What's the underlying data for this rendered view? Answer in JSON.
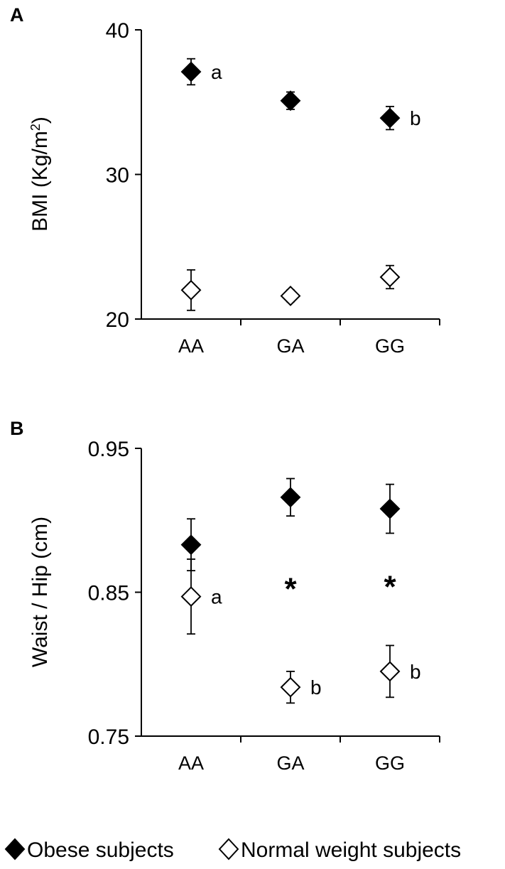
{
  "legend": {
    "obese_label": "Obese subjects",
    "normal_label": "Normal weight subjects"
  },
  "colors": {
    "obese": "#000000",
    "normal": "#ffffff",
    "stroke": "#000000"
  },
  "chart_data": [
    {
      "panel": "A",
      "type": "scatter",
      "categories": [
        "AA",
        "GA",
        "GG"
      ],
      "ylabel": "BMI (Kg/m²)",
      "ylabel_main": "BMI (Kg/m",
      "ylabel_sup": "2",
      "ylabel_end": ")",
      "ylim": [
        20,
        40
      ],
      "yticks": [
        20,
        30,
        40
      ],
      "series": [
        {
          "name": "Obese subjects",
          "values": [
            37.1,
            35.1,
            33.9
          ],
          "error": [
            0.9,
            0.6,
            0.8
          ],
          "annotations": [
            "a",
            "",
            "b"
          ]
        },
        {
          "name": "Normal weight subjects",
          "values": [
            22.0,
            21.6,
            22.9
          ],
          "error": [
            1.4,
            0.4,
            0.8
          ],
          "annotations": [
            "",
            "",
            ""
          ]
        }
      ],
      "stars": [
        "",
        "",
        ""
      ]
    },
    {
      "panel": "B",
      "type": "scatter",
      "categories": [
        "AA",
        "GA",
        "GG"
      ],
      "ylabel": "Waist / Hip (cm)",
      "ylabel_main": "Waist / Hip (cm)",
      "ylabel_sup": "",
      "ylabel_end": "",
      "ylim": [
        0.75,
        0.95
      ],
      "yticks": [
        0.75,
        0.85,
        0.95
      ],
      "yticks_labels": [
        "0.75",
        "0.85",
        "0.95"
      ],
      "series": [
        {
          "name": "Obese subjects",
          "values": [
            0.883,
            0.916,
            0.908
          ],
          "error": [
            0.018,
            0.013,
            0.017
          ],
          "annotations": [
            "",
            "",
            ""
          ]
        },
        {
          "name": "Normal weight subjects",
          "values": [
            0.847,
            0.784,
            0.795
          ],
          "error": [
            0.026,
            0.011,
            0.018
          ],
          "annotations": [
            "a",
            "b",
            "b"
          ]
        }
      ],
      "stars": [
        "",
        "*",
        "*"
      ]
    }
  ]
}
